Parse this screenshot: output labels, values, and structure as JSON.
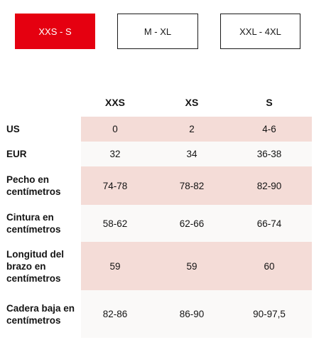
{
  "size_tabs": [
    {
      "label": "XXS - S",
      "active": true
    },
    {
      "label": "M - XL",
      "active": false
    },
    {
      "label": "XXL - 4XL",
      "active": false
    }
  ],
  "table": {
    "columns": [
      "XXS",
      "XS",
      "S"
    ],
    "rows": [
      {
        "label": "US",
        "values": [
          "0",
          "2",
          "4-6"
        ]
      },
      {
        "label": "EUR",
        "values": [
          "32",
          "34",
          "36-38"
        ]
      },
      {
        "label": "Pecho en centímetros",
        "values": [
          "74-78",
          "78-82",
          "82-90"
        ]
      },
      {
        "label": "Cintura en centímetros",
        "values": [
          "58-62",
          "62-66",
          "66-74"
        ]
      },
      {
        "label": "Longitud del brazo en centímetros",
        "values": [
          "59",
          "59",
          "60"
        ]
      },
      {
        "label": "Cadera baja en centímetros",
        "values": [
          "82-86",
          "86-90",
          "90-97,5"
        ]
      }
    ]
  },
  "colors": {
    "accent": "#e50010",
    "row_pink": "#f4dcd7",
    "row_light": "#faf9f8"
  }
}
